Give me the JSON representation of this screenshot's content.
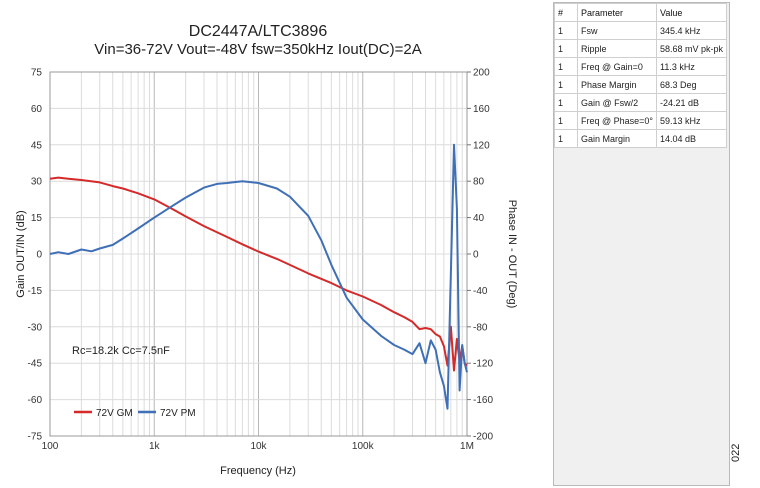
{
  "chart_data": {
    "type": "line",
    "title": "DC2447A/LTC3896",
    "subtitle": "Vin=36-72V Vout=-48V fsw=350kHz Iout(DC)=2A",
    "xlabel": "Frequency (Hz)",
    "ylabel_left": "Gain OUT/IN (dB)",
    "ylabel_right": "Phase IN - OUT (Deg)",
    "x_scale": "log",
    "xlim": [
      100,
      1000000
    ],
    "ylim_left": [
      -75,
      75
    ],
    "ylim_right": [
      -200,
      200
    ],
    "x_ticks": [
      100,
      1000,
      10000,
      100000,
      1000000
    ],
    "x_tick_labels": [
      "100",
      "1k",
      "10k",
      "100k",
      "1M"
    ],
    "left_ticks": [
      "75",
      "60",
      "45",
      "30",
      "15",
      "0",
      "-15",
      "-30",
      "-45",
      "-60",
      "-75"
    ],
    "right_ticks": [
      "200",
      "160",
      "120",
      "80",
      "40",
      "0",
      "-40",
      "-80",
      "-120",
      "-160",
      "-200"
    ],
    "grid": true,
    "annotation": "Rc=18.2k Cc=7.5nF",
    "legend_position": "bottom-left",
    "series": [
      {
        "name": "72V GM",
        "axis": "left",
        "color": "#d42a2a",
        "x": [
          100,
          120,
          150,
          200,
          300,
          400,
          500,
          700,
          1000,
          1500,
          2000,
          3000,
          5000,
          7000,
          10000,
          15000,
          20000,
          30000,
          50000,
          70000,
          100000,
          150000,
          200000,
          250000,
          300000,
          350000,
          400000,
          450000,
          500000,
          550000,
          600000,
          650000,
          700000,
          750000,
          800000,
          850000,
          900000,
          950000,
          1000000
        ],
        "y": [
          31,
          31.5,
          31,
          30.5,
          29.5,
          28,
          27,
          25,
          22.5,
          18.5,
          15.5,
          11.5,
          7,
          4,
          1,
          -2,
          -4.5,
          -8,
          -12,
          -15,
          -17.5,
          -21,
          -24,
          -26,
          -28,
          -31,
          -30.5,
          -31,
          -33,
          -34,
          -38,
          -46,
          -30,
          -48,
          -35,
          -44,
          -38,
          -45,
          -46
        ]
      },
      {
        "name": "72V PM",
        "axis": "right",
        "color": "#3f6fb6",
        "x": [
          100,
          120,
          150,
          200,
          250,
          300,
          400,
          500,
          700,
          1000,
          1500,
          2000,
          3000,
          4000,
          5000,
          7000,
          10000,
          15000,
          20000,
          30000,
          40000,
          50000,
          70000,
          100000,
          150000,
          200000,
          250000,
          300000,
          350000,
          400000,
          450000,
          500000,
          550000,
          600000,
          650000,
          700000,
          750000,
          800000,
          850000,
          900000,
          950000,
          1000000
        ],
        "y": [
          0,
          2,
          0,
          5,
          3,
          6,
          10,
          17,
          28,
          40,
          53,
          62,
          73,
          77,
          78,
          80,
          78,
          72,
          63,
          42,
          15,
          -12,
          -48,
          -72,
          -90,
          -100,
          -105,
          -110,
          -98,
          -120,
          -95,
          -105,
          -130,
          -145,
          -170,
          -20,
          120,
          50,
          -150,
          -100,
          -120,
          -130
        ]
      }
    ]
  },
  "table": {
    "headers": [
      "#",
      "Parameter",
      "Value"
    ],
    "rows": [
      [
        "1",
        "Fsw",
        "345.4 kHz"
      ],
      [
        "1",
        "Ripple",
        "58.68 mV pk-pk"
      ],
      [
        "1",
        "Freq @ Gain=0",
        "11.3 kHz"
      ],
      [
        "1",
        "Phase Margin",
        "68.3 Deg"
      ],
      [
        "1",
        "Gain @ Fsw/2",
        "-24.21 dB"
      ],
      [
        "1",
        "Freq @ Phase=0°",
        "59.13 kHz"
      ],
      [
        "1",
        "Gain Margin",
        "14.04 dB"
      ]
    ]
  },
  "figure_number": "022"
}
